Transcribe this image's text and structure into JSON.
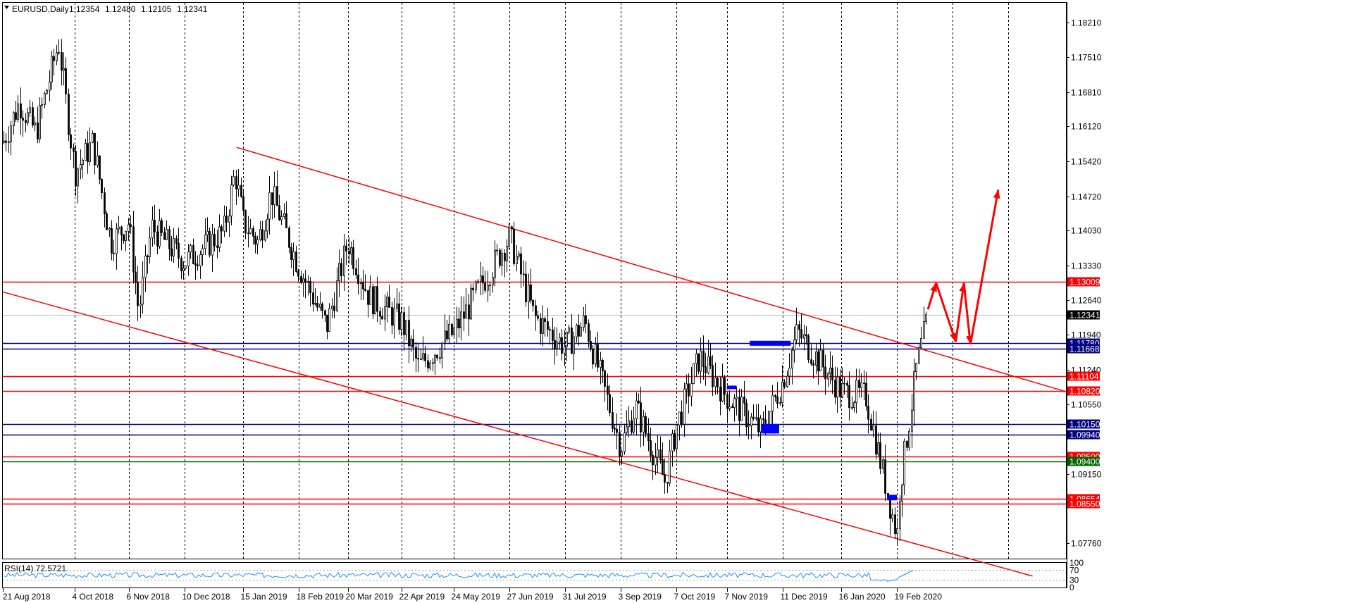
{
  "header": {
    "symbol": "EURUSD,Daily",
    "open": "1.12354",
    "high": "1.12480",
    "low": "1.12105",
    "close": "1.12341"
  },
  "colors": {
    "background": "#ffffff",
    "candle": "#000000",
    "grid": "#000000",
    "trend": "#ff0000",
    "level_red": "#ff0000",
    "level_blue": "#000080",
    "level_green": "#006400",
    "zone_blue": "#0000ff",
    "rsi_line": "#1e90ff",
    "arrow": "#ff0000"
  },
  "chart_data": {
    "type": "candlestick",
    "symbol": "EURUSD",
    "timeframe": "Daily",
    "ylim": [
      1.0745,
      1.186
    ],
    "y_ticks": [
      "1.18210",
      "1.17510",
      "1.16810",
      "1.16120",
      "1.15420",
      "1.14720",
      "1.14030",
      "1.13330",
      "1.12640",
      "1.11940",
      "1.11240",
      "1.10550",
      "1.09150",
      "1.07760"
    ],
    "x_ticks": [
      "21 Aug 2018",
      "4 Oct 2018",
      "6 Nov 2018",
      "10 Dec 2018",
      "15 Jan 2019",
      "18 Feb 2019",
      "20 Mar 2019",
      "22 Apr 2019",
      "24 May 2019",
      "27 Jun 2019",
      "31 Jul 2019",
      "3 Sep 2019",
      "7 Oct 2019",
      "7 Nov 2019",
      "11 Dec 2019",
      "16 Jan 2020",
      "19 Feb 2020"
    ],
    "close_path": [
      {
        "date": "21 Aug 2018",
        "price": 1.158
      },
      {
        "date": "31 Aug 2018",
        "price": 1.166
      },
      {
        "date": "10 Sep 2018",
        "price": 1.16
      },
      {
        "date": "24 Sep 2018",
        "price": 1.178
      },
      {
        "date": "4 Oct 2018",
        "price": 1.152
      },
      {
        "date": "15 Oct 2018",
        "price": 1.158
      },
      {
        "date": "26 Oct 2018",
        "price": 1.138
      },
      {
        "date": "6 Nov 2018",
        "price": 1.142
      },
      {
        "date": "12 Nov 2018",
        "price": 1.124
      },
      {
        "date": "20 Nov 2018",
        "price": 1.141
      },
      {
        "date": "10 Dec 2018",
        "price": 1.134
      },
      {
        "date": "3 Jan 2019",
        "price": 1.14
      },
      {
        "date": "10 Jan 2019",
        "price": 1.152
      },
      {
        "date": "15 Jan 2019",
        "price": 1.142
      },
      {
        "date": "24 Jan 2019",
        "price": 1.138
      },
      {
        "date": "1 Feb 2019",
        "price": 1.148
      },
      {
        "date": "18 Feb 2019",
        "price": 1.133
      },
      {
        "date": "7 Mar 2019",
        "price": 1.121
      },
      {
        "date": "20 Mar 2019",
        "price": 1.138
      },
      {
        "date": "2 Apr 2019",
        "price": 1.127
      },
      {
        "date": "22 Apr 2019",
        "price": 1.122
      },
      {
        "date": "2 May 2019",
        "price": 1.113
      },
      {
        "date": "24 May 2019",
        "price": 1.12
      },
      {
        "date": "7 Jun 2019",
        "price": 1.128
      },
      {
        "date": "27 Jun 2019",
        "price": 1.139
      },
      {
        "date": "12 Jul 2019",
        "price": 1.123
      },
      {
        "date": "31 Jul 2019",
        "price": 1.117
      },
      {
        "date": "12 Aug 2019",
        "price": 1.122
      },
      {
        "date": "3 Sep 2019",
        "price": 1.097
      },
      {
        "date": "12 Sep 2019",
        "price": 1.105
      },
      {
        "date": "30 Sep 2019",
        "price": 1.09
      },
      {
        "date": "7 Oct 2019",
        "price": 1.101
      },
      {
        "date": "21 Oct 2019",
        "price": 1.115
      },
      {
        "date": "7 Nov 2019",
        "price": 1.107
      },
      {
        "date": "28 Nov 2019",
        "price": 1.1
      },
      {
        "date": "11 Dec 2019",
        "price": 1.11
      },
      {
        "date": "20 Dec 2019",
        "price": 1.12
      },
      {
        "date": "16 Jan 2020",
        "price": 1.108
      },
      {
        "date": "31 Jan 2020",
        "price": 1.107
      },
      {
        "date": "19 Feb 2020",
        "price": 1.079
      },
      {
        "date": "20 Feb 2020",
        "price": 1.087
      },
      {
        "date": "2 Mar 2020",
        "price": 1.113
      },
      {
        "date": "9 Mar 2020",
        "price": 1.1234
      }
    ],
    "levels": [
      {
        "price": 1.13009,
        "label": "1.13009",
        "color": "#ff0000",
        "tag": "#ff0000"
      },
      {
        "price": 1.12341,
        "label": "1.12341",
        "color": "#c0c0c0",
        "tag": "#000000"
      },
      {
        "price": 1.1178,
        "label": "1.11780",
        "color": "#000080",
        "tag": "#000080"
      },
      {
        "price": 1.11668,
        "label": "1.11668",
        "color": "#000080",
        "tag": "#000080"
      },
      {
        "price": 1.11104,
        "label": "1.11104",
        "color": "#ff0000",
        "tag": "#ff0000"
      },
      {
        "price": 1.1082,
        "label": "1.10820",
        "color": "#ff0000",
        "tag": "#ff0000"
      },
      {
        "price": 1.1015,
        "label": "1.10150",
        "color": "#000080",
        "tag": "#000080"
      },
      {
        "price": 1.0994,
        "label": "1.09940",
        "color": "#000080",
        "tag": "#000080"
      },
      {
        "price": 1.095,
        "label": "1.09500",
        "color": "#ff0000",
        "tag": "#ff0000"
      },
      {
        "price": 1.094,
        "label": "1.09400",
        "color": "#006400",
        "tag": "#006400"
      },
      {
        "price": 1.08654,
        "label": "1.08654",
        "color": "#ff0000",
        "tag": "#ff0000"
      },
      {
        "price": 1.0855,
        "label": "1.08550",
        "color": "#ff0000",
        "tag": "#ff0000"
      }
    ],
    "trendlines": [
      {
        "from": {
          "date": "11 Jan 2019",
          "price": 1.157
        },
        "to": {
          "date": "6 Jun 2020",
          "price": 1.108
        }
      },
      {
        "from": {
          "date": "21 Aug 2018",
          "price": 1.128
        },
        "to": {
          "date": "12 May 2020",
          "price": 1.071
        }
      }
    ],
    "zones": [
      {
        "from": "21 Nov 2019",
        "to": "16 Dec 2019",
        "price_top": 1.1182,
        "price_bottom": 1.1172
      },
      {
        "from": "7 Nov 2019",
        "to": "13 Nov 2019",
        "price_top": 1.1092,
        "price_bottom": 1.1085
      },
      {
        "from": "28 Nov 2019",
        "to": "9 Dec 2019",
        "price_top": 1.1015,
        "price_bottom": 1.0996
      },
      {
        "from": "13 Feb 2020",
        "to": "19 Feb 2020",
        "price_top": 1.0873,
        "price_bottom": 1.0862
      }
    ],
    "projection": [
      {
        "date": "9 Mar 2020",
        "price": 1.1245
      },
      {
        "date": "14 Mar 2020",
        "price": 1.1298
      },
      {
        "date": "26 Mar 2020",
        "price": 1.118
      },
      {
        "date": "31 Mar 2020",
        "price": 1.1298
      },
      {
        "date": "4 Apr 2020",
        "price": 1.1175
      },
      {
        "date": "21 Apr 2020",
        "price": 1.1485
      }
    ],
    "indicator": {
      "name": "RSI(14)",
      "value": "72.5721",
      "ylim": [
        0,
        100
      ],
      "levels": [
        "100",
        "70",
        "30",
        "0"
      ]
    }
  }
}
